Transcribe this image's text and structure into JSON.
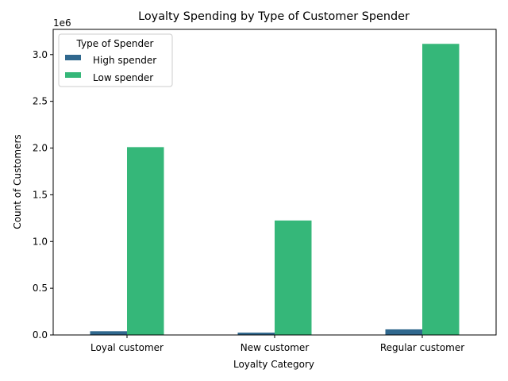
{
  "chart_data": {
    "type": "bar",
    "title": "Loyalty Spending by Type of Customer Spender",
    "xlabel": "Loyalty Category",
    "ylabel": "Count of Customers",
    "y_offset_label": "1e6",
    "categories": [
      "Loyal customer",
      "New customer",
      "Regular customer"
    ],
    "series": [
      {
        "name": "High spender",
        "color": "#30688e",
        "values": [
          40000,
          25000,
          60000
        ]
      },
      {
        "name": "Low spender",
        "color": "#35b779",
        "values": [
          2010000,
          1225000,
          3115000
        ]
      }
    ],
    "ylim": [
      0,
      3270000
    ],
    "yticks": [
      0,
      500000,
      1000000,
      1500000,
      2000000,
      2500000,
      3000000
    ],
    "ytick_labels": [
      "0.0",
      "0.5",
      "1.0",
      "1.5",
      "2.0",
      "2.5",
      "3.0"
    ],
    "legend": {
      "title": "Type of Spender",
      "placement": "top-left"
    },
    "grid": false
  }
}
